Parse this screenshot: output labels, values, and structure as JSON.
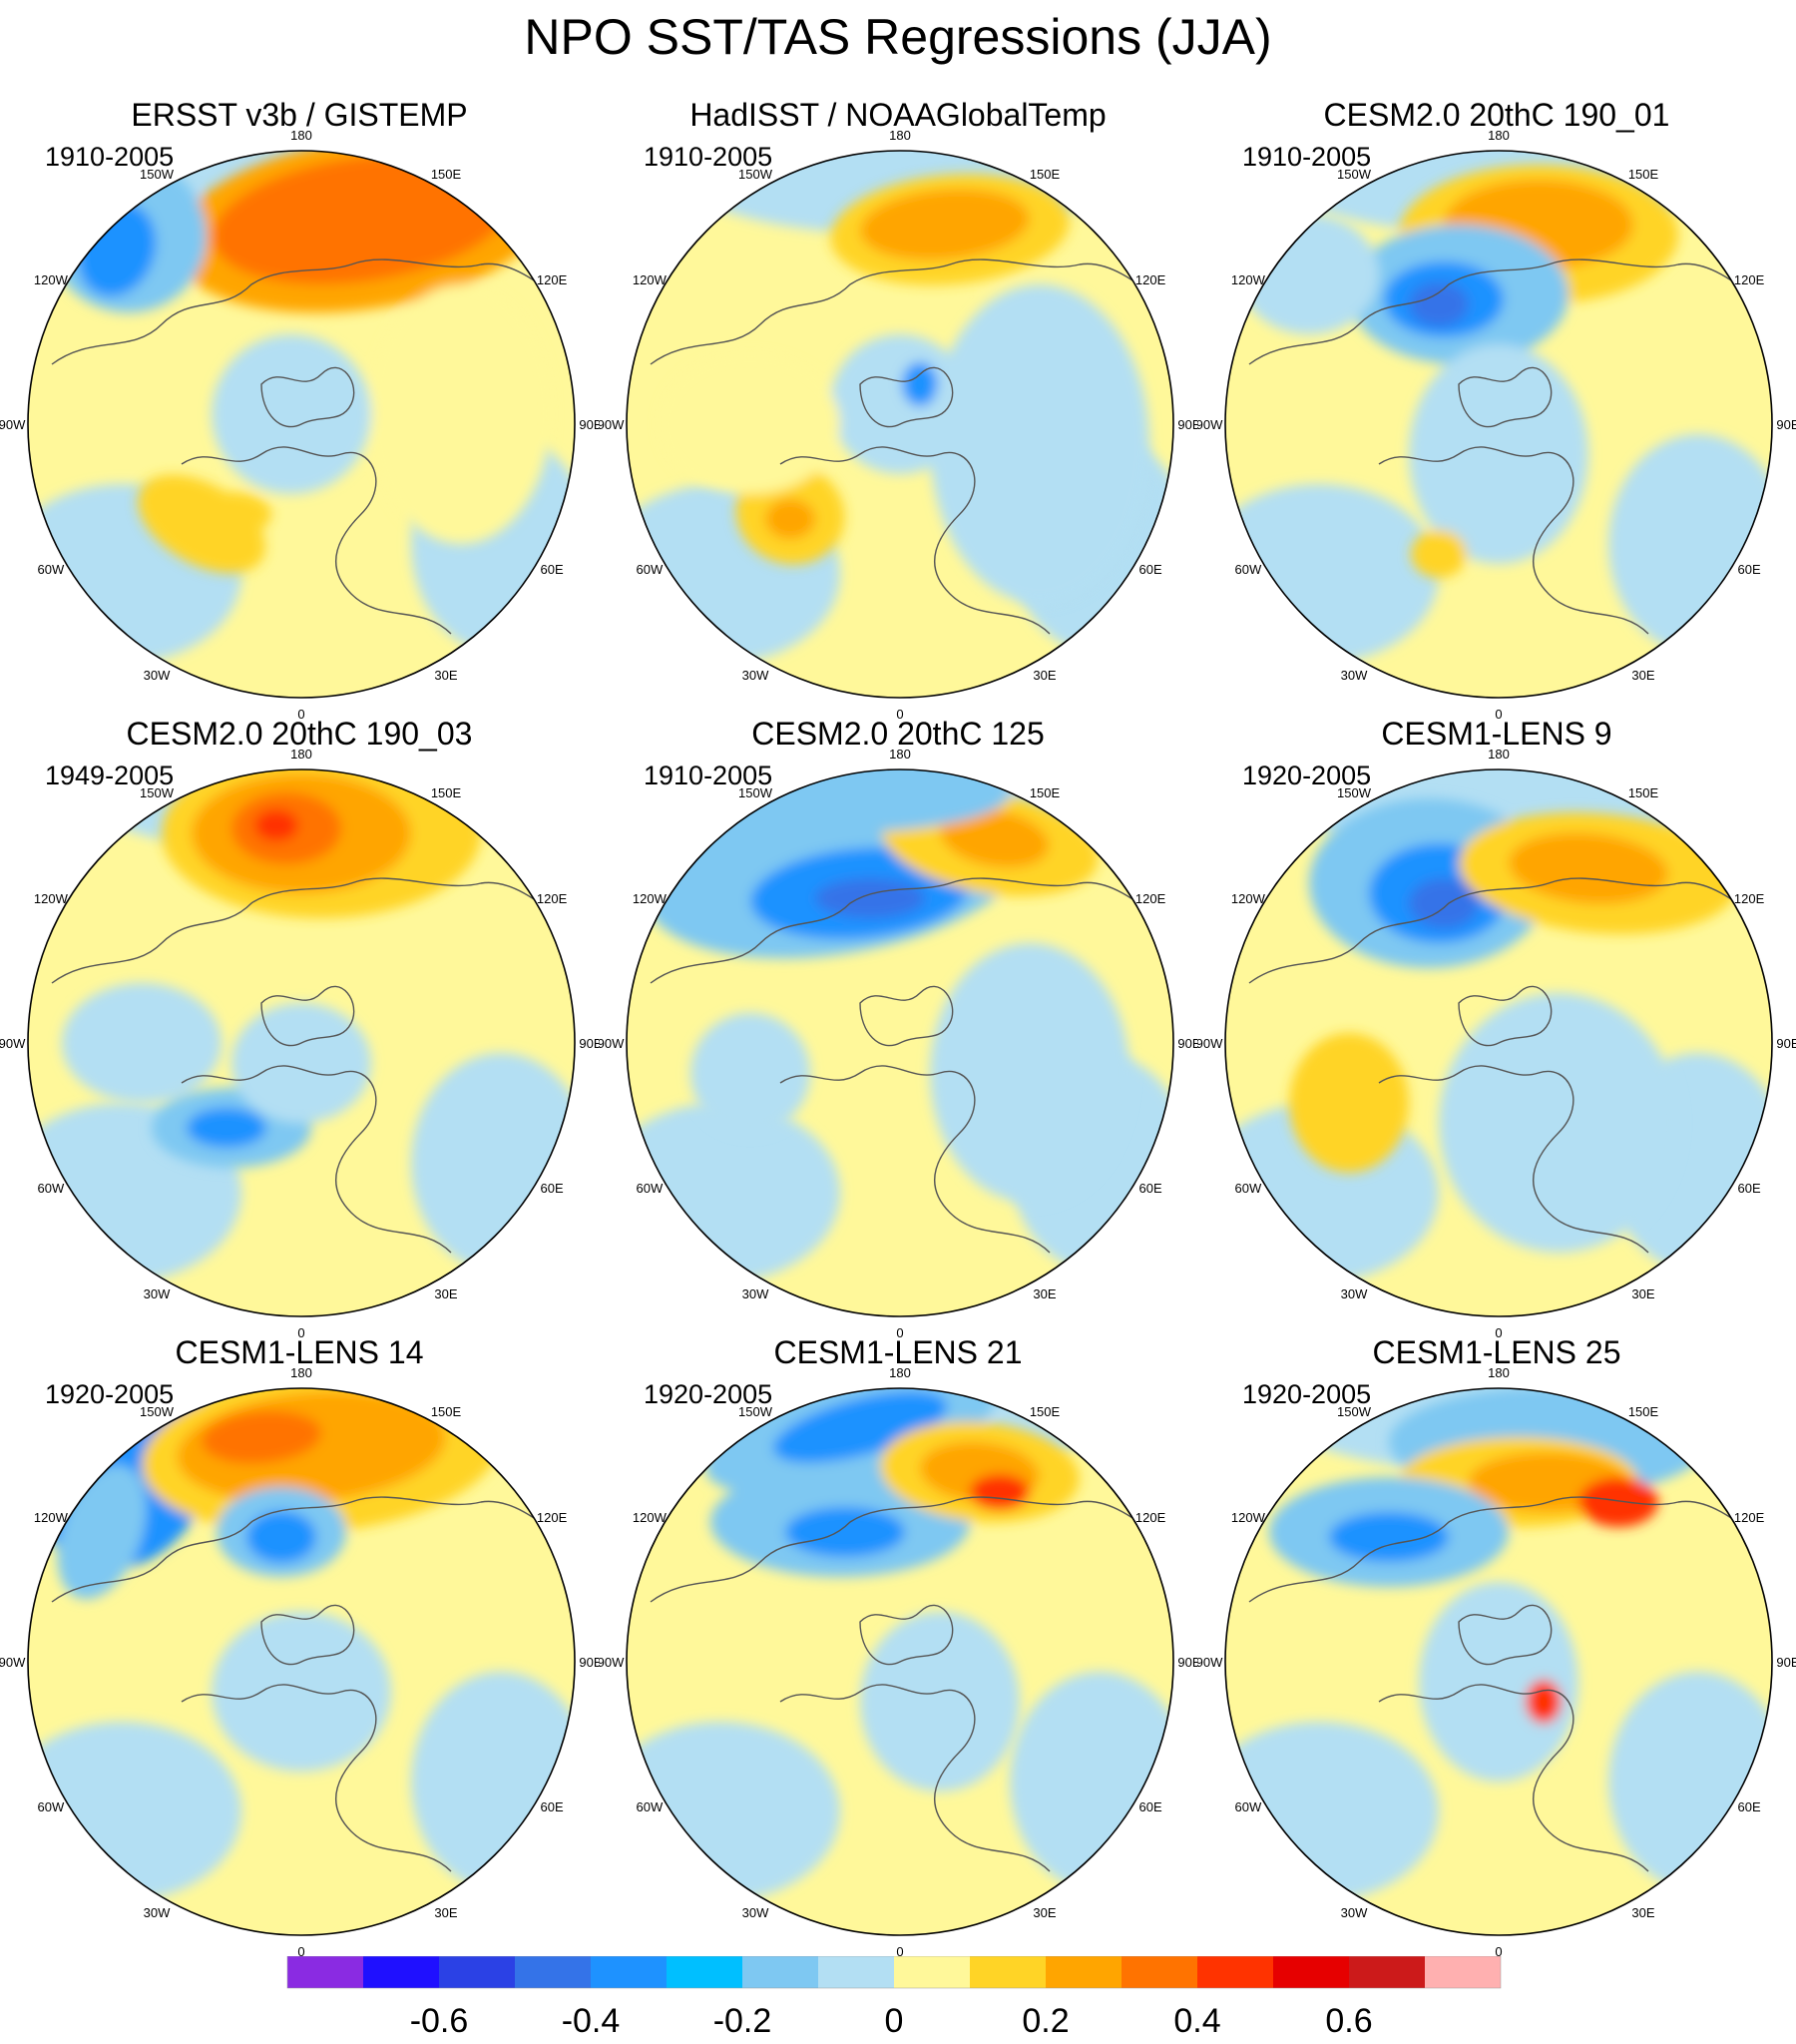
{
  "title": "NPO SST/TAS Regressions (JJA)",
  "longitude_labels": [
    "180",
    "150E",
    "120E",
    "90E",
    "60E",
    "30E",
    "0",
    "30W",
    "60W",
    "90W",
    "120W",
    "150W"
  ],
  "panels": [
    {
      "title": "ERSST v3b / GISTEMP",
      "period": "1910-2005"
    },
    {
      "title": "HadISST / NOAAGlobalTemp",
      "period": "1910-2005"
    },
    {
      "title": "CESM2.0 20thC 190_01",
      "period": "1910-2005"
    },
    {
      "title": "CESM2.0 20thC 190_03",
      "period": "1949-2005"
    },
    {
      "title": "CESM2.0 20thC 125",
      "period": "1910-2005"
    },
    {
      "title": "CESM1-LENS 9",
      "period": "1920-2005"
    },
    {
      "title": "CESM1-LENS 14",
      "period": "1920-2005"
    },
    {
      "title": "CESM1-LENS 21",
      "period": "1920-2005"
    },
    {
      "title": "CESM1-LENS 25",
      "period": "1920-2005"
    }
  ],
  "colorbar": {
    "colors": [
      "#8a2be2",
      "#1f10ff",
      "#2b41e5",
      "#3473e8",
      "#1e92ff",
      "#00bfff",
      "#7ec8f2",
      "#b3dff3",
      "#fff89a",
      "#ffd426",
      "#ffa500",
      "#ff7300",
      "#ff3300",
      "#e60000",
      "#cc1a1a",
      "#ffb0b0"
    ],
    "tick_labels": [
      "-0.6",
      "-0.4",
      "-0.2",
      "0",
      "0.2",
      "0.4",
      "0.6"
    ],
    "tick_values": [
      -0.6,
      -0.4,
      -0.2,
      0,
      0.2,
      0.4,
      0.6
    ]
  }
}
